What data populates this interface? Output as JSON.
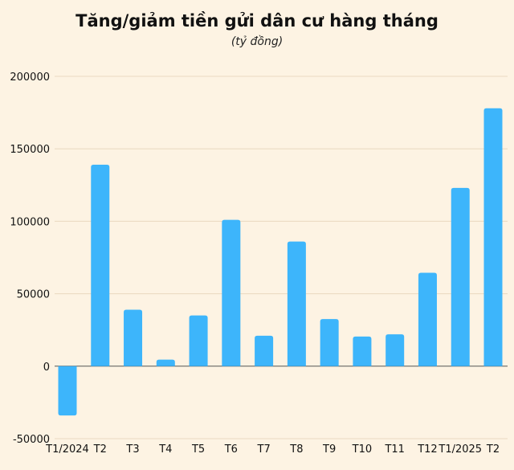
{
  "chart_data": {
    "type": "bar",
    "title": "Tăng/giảm tiền gửi dân cư hàng tháng",
    "subtitle": "(tỷ đồng)",
    "categories": [
      "T1/2024",
      "T2",
      "T3",
      "T4",
      "T5",
      "T6",
      "T7",
      "T8",
      "T9",
      "T10",
      "T11",
      "T12",
      "T1/2025",
      "T2"
    ],
    "values": [
      -34000,
      139000,
      39000,
      4500,
      35000,
      101000,
      21000,
      86000,
      32500,
      20500,
      22000,
      64500,
      123000,
      178000
    ],
    "ylim": [
      -50000,
      200000
    ],
    "yticks": [
      -50000,
      0,
      50000,
      100000,
      150000,
      200000
    ],
    "bar_color": "#3db5fb",
    "grid": true,
    "xlabel": "",
    "ylabel": ""
  }
}
